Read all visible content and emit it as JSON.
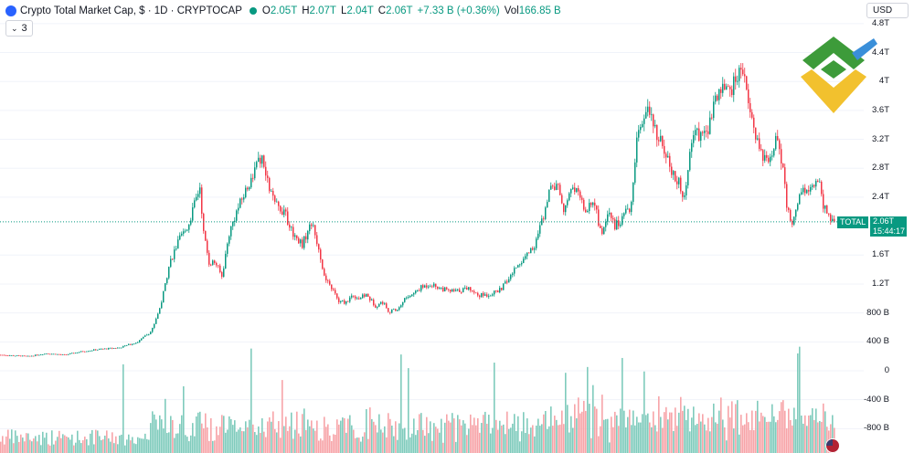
{
  "header": {
    "title": "Crypto Total Market Cap, $ · 1D · CRYPTOCAP",
    "open_label": "O",
    "open_value": "2.05T",
    "high_label": "H",
    "high_value": "2.07T",
    "low_label": "L",
    "low_value": "2.04T",
    "close_label": "C",
    "close_value": "2.06T",
    "change": "+7.33 B (+0.36%)",
    "vol_label": "Vol",
    "vol_value": "166.85 B"
  },
  "indicators": {
    "count_label": "3"
  },
  "currency": {
    "label": "USD"
  },
  "price_tag": {
    "symbol": "TOTAL",
    "value": "2.06T",
    "countdown": "15:44:17"
  },
  "colors": {
    "up": "#089981",
    "down": "#f23645",
    "up_vol": "#7fcbbc",
    "down_vol": "#f7a4a8",
    "grid": "#f0f3fa"
  },
  "chart_data": {
    "type": "candlestick",
    "title": "Crypto Total Market Cap, $",
    "y_axis": {
      "ticks": [
        "4.8T",
        "4.4T",
        "4T",
        "3.6T",
        "3.2T",
        "2.8T",
        "2.4T",
        "1.6T",
        "1.2T",
        "800 B",
        "400 B",
        "0",
        "-400 B",
        "-800 B"
      ],
      "tick_values": [
        4.8,
        4.4,
        4.0,
        3.6,
        3.2,
        2.8,
        2.4,
        1.6,
        1.2,
        0.8,
        0.4,
        0,
        -0.4,
        -0.8
      ],
      "unit": "T"
    },
    "last_price": 2.06,
    "close_keypoints": [
      [
        0,
        0.22
      ],
      [
        30,
        0.2
      ],
      [
        50,
        0.24
      ],
      [
        70,
        0.22
      ],
      [
        90,
        0.27
      ],
      [
        110,
        0.3
      ],
      [
        130,
        0.32
      ],
      [
        150,
        0.4
      ],
      [
        165,
        0.55
      ],
      [
        175,
        0.9
      ],
      [
        185,
        1.5
      ],
      [
        195,
        1.8
      ],
      [
        205,
        2.0
      ],
      [
        212,
        2.3
      ],
      [
        218,
        2.55
      ],
      [
        222,
        1.9
      ],
      [
        228,
        1.5
      ],
      [
        235,
        1.5
      ],
      [
        242,
        1.3
      ],
      [
        250,
        1.9
      ],
      [
        258,
        2.2
      ],
      [
        265,
        2.4
      ],
      [
        275,
        2.7
      ],
      [
        285,
        2.95
      ],
      [
        292,
        2.6
      ],
      [
        300,
        2.3
      ],
      [
        310,
        2.2
      ],
      [
        320,
        1.9
      ],
      [
        330,
        1.75
      ],
      [
        340,
        2.05
      ],
      [
        348,
        1.7
      ],
      [
        355,
        1.25
      ],
      [
        362,
        1.15
      ],
      [
        370,
        0.95
      ],
      [
        378,
        0.95
      ],
      [
        385,
        1.05
      ],
      [
        392,
        1.0
      ],
      [
        400,
        1.05
      ],
      [
        410,
        0.9
      ],
      [
        418,
        0.95
      ],
      [
        425,
        0.82
      ],
      [
        435,
        0.85
      ],
      [
        442,
        1.0
      ],
      [
        450,
        1.05
      ],
      [
        460,
        1.15
      ],
      [
        470,
        1.2
      ],
      [
        480,
        1.15
      ],
      [
        490,
        1.1
      ],
      [
        500,
        1.1
      ],
      [
        512,
        1.15
      ],
      [
        522,
        1.05
      ],
      [
        532,
        1.05
      ],
      [
        545,
        1.1
      ],
      [
        555,
        1.25
      ],
      [
        565,
        1.45
      ],
      [
        575,
        1.6
      ],
      [
        585,
        1.75
      ],
      [
        595,
        2.2
      ],
      [
        602,
        2.6
      ],
      [
        610,
        2.5
      ],
      [
        617,
        2.2
      ],
      [
        625,
        2.55
      ],
      [
        632,
        2.45
      ],
      [
        640,
        2.2
      ],
      [
        650,
        2.35
      ],
      [
        657,
        1.85
      ],
      [
        665,
        2.2
      ],
      [
        672,
        2.0
      ],
      [
        680,
        2.1
      ],
      [
        690,
        2.3
      ],
      [
        697,
        3.3
      ],
      [
        705,
        3.6
      ],
      [
        712,
        3.5
      ],
      [
        720,
        3.2
      ],
      [
        727,
        3.05
      ],
      [
        735,
        2.7
      ],
      [
        742,
        2.6
      ],
      [
        747,
        2.3
      ],
      [
        752,
        2.85
      ],
      [
        760,
        3.3
      ],
      [
        768,
        3.2
      ],
      [
        775,
        3.4
      ],
      [
        782,
        3.7
      ],
      [
        790,
        3.95
      ],
      [
        797,
        3.85
      ],
      [
        805,
        4.05
      ],
      [
        812,
        4.15
      ],
      [
        818,
        3.8
      ],
      [
        825,
        3.3
      ],
      [
        832,
        3.0
      ],
      [
        840,
        2.85
      ],
      [
        848,
        3.2
      ],
      [
        855,
        2.9
      ],
      [
        860,
        2.25
      ],
      [
        867,
        2.05
      ],
      [
        875,
        2.45
      ],
      [
        882,
        2.5
      ],
      [
        890,
        2.6
      ],
      [
        895,
        2.65
      ],
      [
        900,
        2.3
      ],
      [
        906,
        2.15
      ],
      [
        910,
        2.06
      ]
    ]
  }
}
